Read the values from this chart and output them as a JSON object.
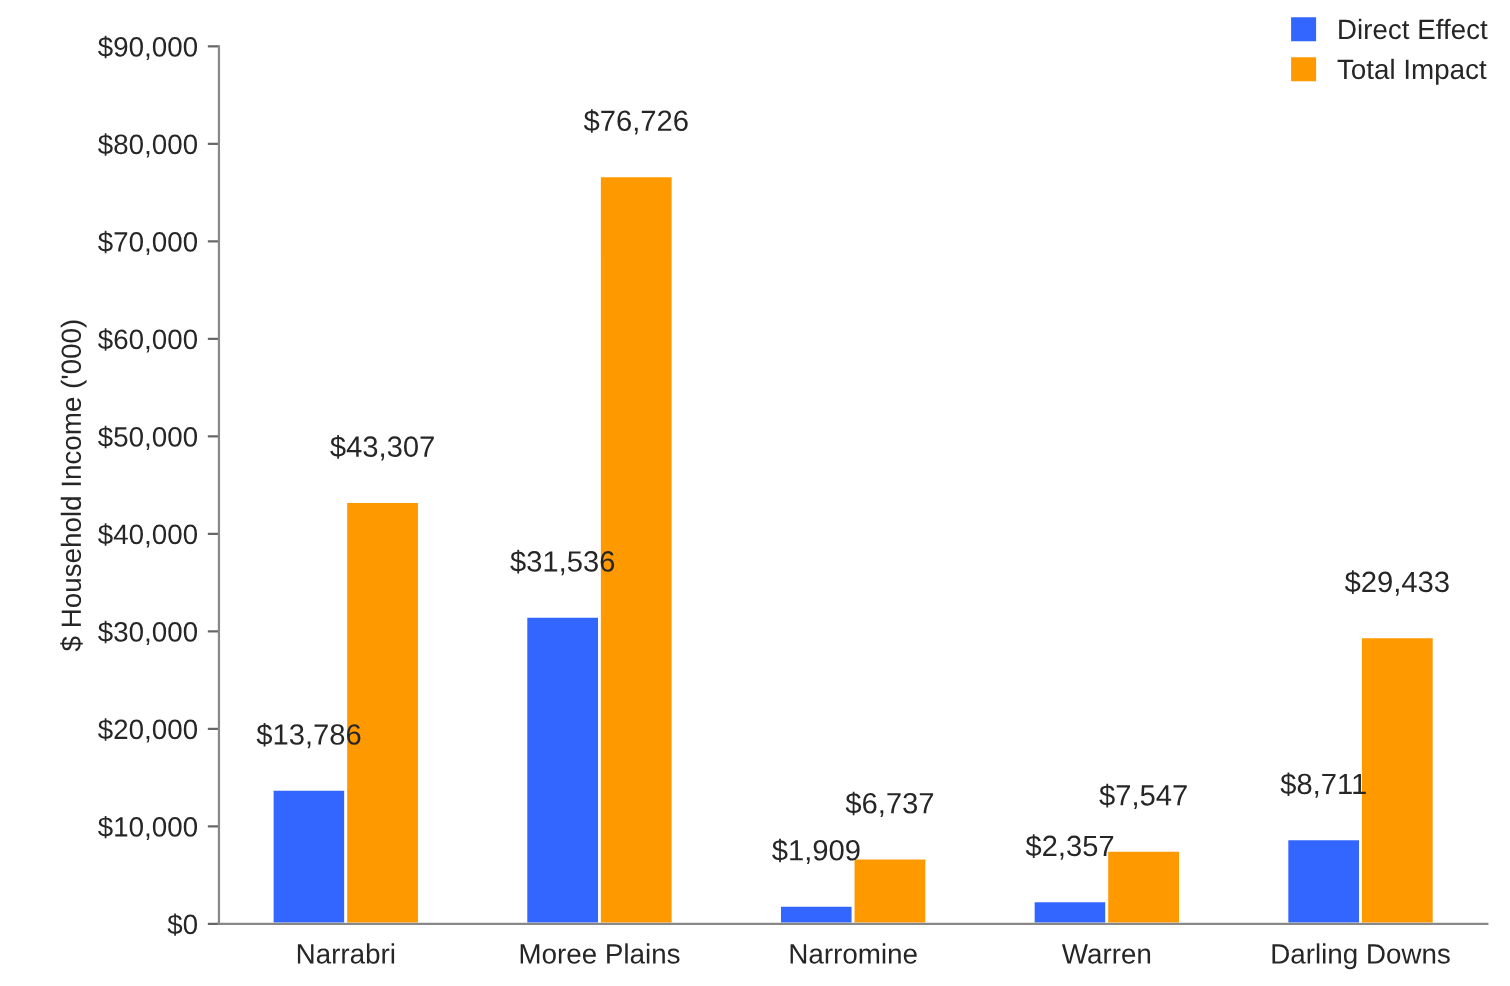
{
  "chart_data": {
    "type": "bar",
    "ylabel": "$ Household Income ('000)",
    "categories": [
      "Narrabri",
      "Moree Plains",
      "Narromine",
      "Warren",
      "Darling Downs"
    ],
    "series": [
      {
        "name": "Direct Effect",
        "color": "#3366ff",
        "values": [
          13786,
          31536,
          1909,
          2357,
          8711
        ],
        "value_labels": [
          "$13,786",
          "$31,536",
          "$1,909",
          "$2,357",
          "$8,711"
        ]
      },
      {
        "name": "Total Impact",
        "color": "#ff9900",
        "values": [
          43307,
          76726,
          6737,
          7547,
          29433
        ],
        "value_labels": [
          "$43,307",
          "$76,726",
          "$6,737",
          "$7,547",
          "$29,433"
        ]
      }
    ],
    "ylim": [
      0,
      90000
    ],
    "yticks": [
      {
        "value": 0,
        "label": "$0"
      },
      {
        "value": 10000,
        "label": "$10,000"
      },
      {
        "value": 20000,
        "label": "$20,000"
      },
      {
        "value": 30000,
        "label": "$30,000"
      },
      {
        "value": 40000,
        "label": "$40,000"
      },
      {
        "value": 50000,
        "label": "$50,000"
      },
      {
        "value": 60000,
        "label": "$60,000"
      },
      {
        "value": 70000,
        "label": "$70,000"
      },
      {
        "value": 80000,
        "label": "$80,000"
      },
      {
        "value": 90000,
        "label": "$90,000"
      }
    ],
    "grid": false,
    "legend": "top right"
  }
}
